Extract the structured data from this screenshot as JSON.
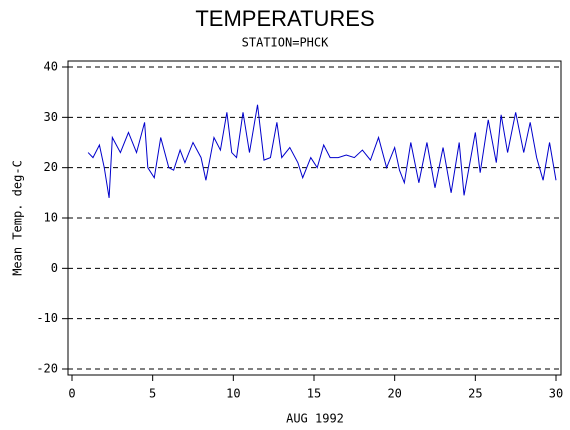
{
  "chart_data": {
    "type": "line",
    "title": "TEMPERATURES",
    "subtitle": "STATION=PHCK",
    "x_label": "AUG 1992",
    "y_label": "Mean Temp. deg-C",
    "xlim": [
      0,
      30
    ],
    "xticks": [
      0,
      5,
      10,
      15,
      20,
      25,
      30
    ],
    "ylim": [
      -20,
      40
    ],
    "yticks": [
      -20,
      -10,
      0,
      10,
      20,
      30,
      40
    ],
    "grid": true,
    "x": [
      1,
      1.3,
      1.7,
      2,
      2.3,
      2.5,
      3,
      3.5,
      4,
      4.5,
      4.7,
      5.1,
      5.5,
      6,
      6.3,
      6.7,
      7,
      7.5,
      8,
      8.3,
      8.8,
      9.2,
      9.6,
      9.9,
      10.2,
      10.6,
      11,
      11.5,
      11.9,
      12.3,
      12.7,
      13,
      13.5,
      14,
      14.3,
      14.8,
      15.2,
      15.6,
      16,
      16.5,
      17,
      17.5,
      18,
      18.5,
      19,
      19.5,
      20,
      20.3,
      20.6,
      21,
      21.5,
      22,
      22.5,
      23,
      23.5,
      24,
      24.3,
      25,
      25.3,
      25.8,
      26.3,
      26.6,
      27,
      27.5,
      28,
      28.4,
      28.8,
      29.2,
      29.6,
      30
    ],
    "series": [
      {
        "name": "Mean Temp",
        "color": "#0000cc",
        "values": [
          23,
          22,
          24.5,
          20,
          14,
          26,
          23,
          27,
          23,
          29,
          20,
          18,
          26,
          20,
          19.5,
          23.5,
          21,
          25,
          22,
          17.5,
          26,
          23.5,
          31,
          23,
          22,
          31,
          23,
          32.5,
          21.5,
          22,
          29,
          22,
          24,
          21,
          18,
          22,
          20,
          24.5,
          22,
          22,
          22.5,
          22,
          23.5,
          21.5,
          26,
          20,
          24,
          19.5,
          17,
          25,
          17,
          25,
          16,
          24,
          15,
          25,
          14.5,
          27,
          19,
          29.5,
          21,
          30.5,
          23,
          31,
          23,
          29,
          22,
          17.5,
          25,
          17.5
        ]
      }
    ]
  }
}
